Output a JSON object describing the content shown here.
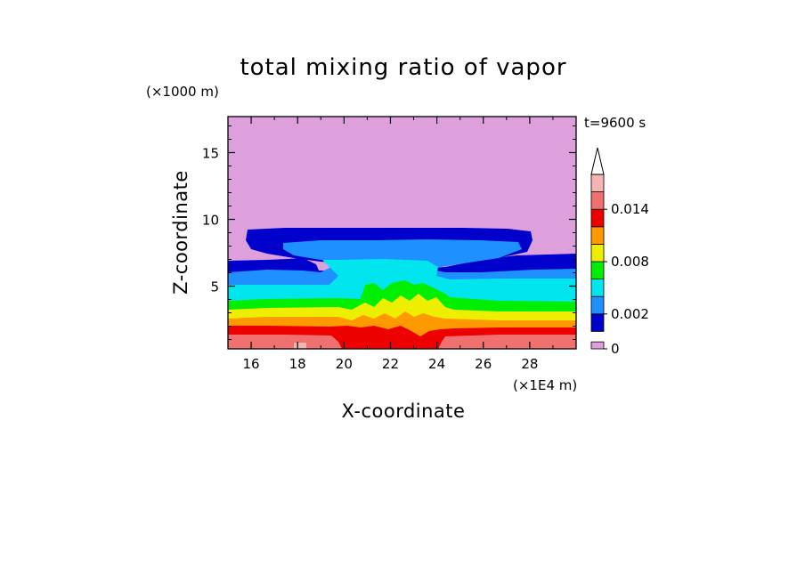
{
  "chart_data": {
    "type": "heatmap",
    "title": "total mixing ratio of vapor",
    "time_label": "t=9600 s",
    "xlabel": "X-coordinate",
    "ylabel": "Z-coordinate",
    "x_unit": "(×1E4 m)",
    "y_unit": "(×1000 m)",
    "xlim": [
      15,
      30
    ],
    "ylim": [
      0.3,
      17.7
    ],
    "xticks": [
      16,
      18,
      20,
      22,
      24,
      26,
      28
    ],
    "yticks": [
      5,
      10,
      15
    ],
    "colorbar": {
      "levels": [
        0,
        0.001,
        0.002,
        0.004,
        0.006,
        0.008,
        0.01,
        0.012,
        0.014,
        0.016
      ],
      "labels": [
        "0",
        "0.002",
        "0.008",
        "0.014"
      ],
      "label_values": [
        0,
        0.002,
        0.008,
        0.014
      ],
      "colors": [
        "#dda0dd",
        "#0000cd",
        "#1e90ff",
        "#00e5ee",
        "#00ee00",
        "#eeee00",
        "#ff9900",
        "#ee0000",
        "#f07070",
        "#f4b4b4"
      ],
      "extend": "max"
    },
    "layers": [
      {
        "level_index": 1,
        "description_z_top": 9.2,
        "x_range": [
          16.5,
          28
        ]
      },
      {
        "level_index": 2,
        "description_z_top": 8.2,
        "x_range": [
          17.3,
          27.2
        ]
      },
      {
        "level_index": 3,
        "description_z_top": 6.9,
        "x_range": [
          19,
          25
        ]
      },
      {
        "level_index": 4,
        "description_z_top": 5.0,
        "x_range": [
          15,
          30
        ]
      },
      {
        "level_index": 5,
        "description_z_top": 3.7,
        "x_range": [
          15,
          30
        ]
      },
      {
        "level_index": 6,
        "description_z_top": 3.1,
        "x_range": [
          15,
          30
        ]
      },
      {
        "level_index": 7,
        "description_z_top": 2.4,
        "x_range": [
          15,
          30
        ]
      },
      {
        "level_index": 8,
        "description_z_top": 1.7,
        "x_range": [
          15,
          30
        ]
      }
    ]
  }
}
